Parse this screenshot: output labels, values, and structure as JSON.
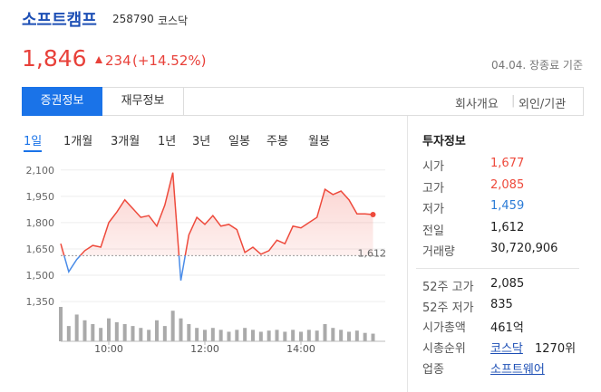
{
  "header": {
    "name": "소프트캠프",
    "code": "258790",
    "market": "코스닥",
    "price": "1,846",
    "change": "234",
    "change_pct": "(+14.52%)",
    "asof": "04.04. 장종료 기준"
  },
  "tabs": [
    "증권정보",
    "재무정보"
  ],
  "links": [
    "회사개요",
    "외인/기관"
  ],
  "periods": [
    "1일",
    "1개월",
    "3개월",
    "1년",
    "3년",
    "일봉",
    "주봉",
    "월봉"
  ],
  "chart_data": {
    "type": "line",
    "x": [
      "09:00",
      "09:10",
      "09:20",
      "09:30",
      "09:40",
      "09:50",
      "10:00",
      "10:10",
      "10:20",
      "10:30",
      "10:40",
      "10:50",
      "11:00",
      "11:10",
      "11:20",
      "11:30",
      "11:40",
      "11:50",
      "12:00",
      "12:10",
      "12:20",
      "12:30",
      "12:40",
      "12:50",
      "13:00",
      "13:10",
      "13:20",
      "13:30",
      "13:40",
      "13:50",
      "14:00",
      "14:10",
      "14:20",
      "14:30",
      "14:40",
      "14:50",
      "15:00",
      "15:10",
      "15:20",
      "15:30"
    ],
    "series": [
      {
        "name": "price",
        "color": "#ee4a3c",
        "values": [
          1680,
          1520,
          1590,
          1640,
          1670,
          1660,
          1800,
          1860,
          1930,
          1880,
          1830,
          1840,
          1780,
          1900,
          2085,
          1470,
          1730,
          1830,
          1790,
          1840,
          1780,
          1790,
          1760,
          1630,
          1660,
          1620,
          1640,
          1700,
          1680,
          1780,
          1770,
          1800,
          1830,
          1990,
          1960,
          1980,
          1930,
          1850,
          1850,
          1846
        ]
      }
    ],
    "volume": [
      90,
      40,
      70,
      55,
      45,
      35,
      60,
      50,
      45,
      40,
      35,
      30,
      55,
      40,
      80,
      60,
      45,
      35,
      30,
      35,
      30,
      25,
      30,
      35,
      30,
      25,
      28,
      30,
      25,
      30,
      25,
      30,
      28,
      45,
      35,
      30,
      25,
      28,
      22,
      20
    ],
    "ylim": [
      1330,
      2140
    ],
    "yticks": [
      {
        "value": 1350,
        "label": "1,350"
      },
      {
        "value": 1500,
        "label": "1,500"
      },
      {
        "value": 1650,
        "label": "1,650"
      },
      {
        "value": 1800,
        "label": "1,800"
      },
      {
        "value": 1950,
        "label": "1,950"
      },
      {
        "value": 2100,
        "label": "2,100"
      }
    ],
    "xticks": [
      "10:00",
      "12:00",
      "14:00"
    ],
    "reference": {
      "value": 1612,
      "label": "1,612"
    },
    "up_color": "#ee4a3c",
    "down_color": "#4a8ce8",
    "grid": true
  },
  "invest": {
    "title": "투자정보",
    "rows": [
      {
        "label": "시가",
        "value": "1,677",
        "color": "#ee4a3c"
      },
      {
        "label": "고가",
        "value": "2,085",
        "color": "#ee4a3c"
      },
      {
        "label": "저가",
        "value": "1,459",
        "color": "#2b7bd6"
      },
      {
        "label": "전일",
        "value": "1,612",
        "color": "#222222"
      },
      {
        "label": "거래량",
        "value": "30,720,906",
        "color": "#222222"
      }
    ],
    "rows2": [
      {
        "label": "52주 고가",
        "value": "2,085"
      },
      {
        "label": "52주 저가",
        "value": "835"
      },
      {
        "label": "시가총액",
        "value": "461억"
      }
    ],
    "rank": {
      "label": "시총순위",
      "link": "코스닥",
      "value": "1270위"
    },
    "sector": {
      "label": "업종",
      "link": "소프트웨어"
    }
  }
}
